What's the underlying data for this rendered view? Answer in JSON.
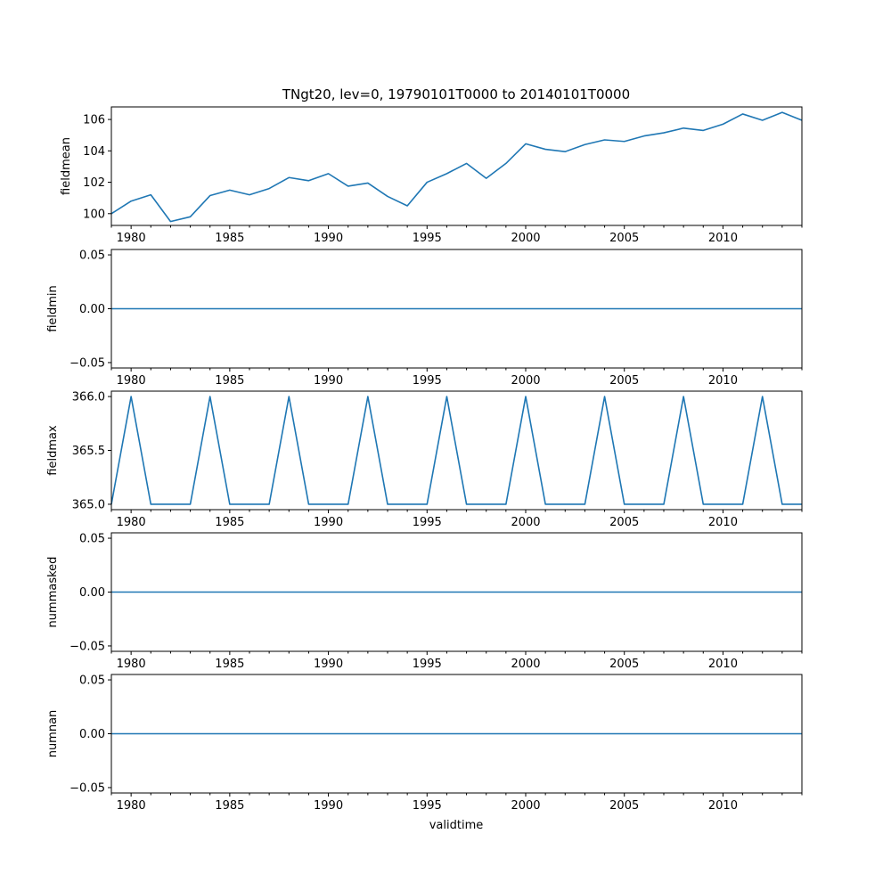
{
  "chart_data": {
    "type": "line",
    "title": "TNgt20, lev=0, 19790101T0000 to 20140101T0000",
    "xlabel": "validtime",
    "xlim": [
      1979,
      2014
    ],
    "x_major_ticks": [
      1980,
      1985,
      1990,
      1995,
      2000,
      2005,
      2010
    ],
    "x_tick_labels": [
      "1980",
      "1985",
      "1990",
      "1995",
      "2000",
      "2005",
      "2010"
    ],
    "x": [
      1979,
      1980,
      1981,
      1982,
      1983,
      1984,
      1985,
      1986,
      1987,
      1988,
      1989,
      1990,
      1991,
      1992,
      1993,
      1994,
      1995,
      1996,
      1997,
      1998,
      1999,
      2000,
      2001,
      2002,
      2003,
      2004,
      2005,
      2006,
      2007,
      2008,
      2009,
      2010,
      2011,
      2012,
      2013,
      2014
    ],
    "color": "#1f77b4",
    "panels": [
      {
        "ylabel": "fieldmean",
        "ylim": [
          99.25,
          106.8
        ],
        "y_ticks": [
          100,
          102,
          104,
          106
        ],
        "y_tick_labels": [
          "100",
          "102",
          "104",
          "106"
        ],
        "values": [
          100.0,
          100.8,
          101.2,
          99.5,
          99.8,
          101.15,
          101.5,
          101.2,
          101.6,
          102.3,
          102.1,
          102.55,
          101.75,
          101.95,
          101.1,
          100.5,
          102.0,
          102.55,
          103.2,
          102.25,
          103.2,
          104.45,
          104.1,
          103.95,
          104.4,
          104.7,
          104.6,
          104.95,
          105.15,
          105.45,
          105.3,
          105.7,
          106.35,
          105.95,
          106.45,
          105.95
        ]
      },
      {
        "ylabel": "fieldmin",
        "ylim": [
          -0.055,
          0.055
        ],
        "y_ticks": [
          -0.05,
          0.0,
          0.05
        ],
        "y_tick_labels": [
          "−0.05",
          "0.00",
          "0.05"
        ],
        "values": [
          0,
          0,
          0,
          0,
          0,
          0,
          0,
          0,
          0,
          0,
          0,
          0,
          0,
          0,
          0,
          0,
          0,
          0,
          0,
          0,
          0,
          0,
          0,
          0,
          0,
          0,
          0,
          0,
          0,
          0,
          0,
          0,
          0,
          0,
          0,
          0
        ]
      },
      {
        "ylabel": "fieldmax",
        "ylim": [
          364.95,
          366.05
        ],
        "y_ticks": [
          365.0,
          365.5,
          366.0
        ],
        "y_tick_labels": [
          "365.0",
          "365.5",
          "366.0"
        ],
        "values": [
          365,
          366,
          365,
          365,
          365,
          366,
          365,
          365,
          365,
          366,
          365,
          365,
          365,
          366,
          365,
          365,
          365,
          366,
          365,
          365,
          365,
          366,
          365,
          365,
          365,
          366,
          365,
          365,
          365,
          366,
          365,
          365,
          365,
          366,
          365,
          365
        ]
      },
      {
        "ylabel": "nummasked",
        "ylim": [
          -0.055,
          0.055
        ],
        "y_ticks": [
          -0.05,
          0.0,
          0.05
        ],
        "y_tick_labels": [
          "−0.05",
          "0.00",
          "0.05"
        ],
        "values": [
          0,
          0,
          0,
          0,
          0,
          0,
          0,
          0,
          0,
          0,
          0,
          0,
          0,
          0,
          0,
          0,
          0,
          0,
          0,
          0,
          0,
          0,
          0,
          0,
          0,
          0,
          0,
          0,
          0,
          0,
          0,
          0,
          0,
          0,
          0,
          0
        ]
      },
      {
        "ylabel": "numnan",
        "ylim": [
          -0.055,
          0.055
        ],
        "y_ticks": [
          -0.05,
          0.0,
          0.05
        ],
        "y_tick_labels": [
          "−0.05",
          "0.00",
          "0.05"
        ],
        "values": [
          0,
          0,
          0,
          0,
          0,
          0,
          0,
          0,
          0,
          0,
          0,
          0,
          0,
          0,
          0,
          0,
          0,
          0,
          0,
          0,
          0,
          0,
          0,
          0,
          0,
          0,
          0,
          0,
          0,
          0,
          0,
          0,
          0,
          0,
          0,
          0
        ]
      }
    ]
  }
}
